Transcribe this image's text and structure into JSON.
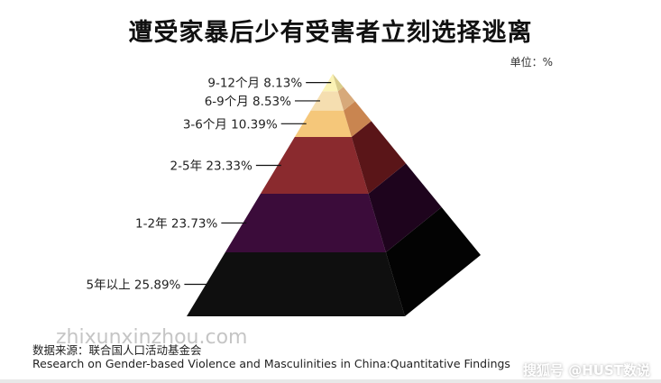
{
  "header": {
    "title": "遭受家暴后少有受害者立刻选择逃离",
    "unit": "单位：%"
  },
  "source": {
    "line1": "数据来源：联合国人口活动基金会",
    "line2": "Research on Gender-based Violence and Masculinities in China:Quantitative Findings"
  },
  "watermark": "zhixunxinzhou.com",
  "brand": "搜狐号 @HUST数说",
  "chart_data": {
    "type": "pyramid",
    "unit": "%",
    "categories": [
      "5年以上",
      "1-2年",
      "2-5年",
      "3-6个月",
      "6-9个月",
      "9-12个月"
    ],
    "values": [
      25.89,
      23.73,
      23.33,
      10.39,
      8.53,
      8.13
    ],
    "labels": [
      "5年以上  25.89%",
      "1-2年  23.73%",
      "2-5年  23.33%",
      "3-6个月  10.39%",
      "6-9个月  8.53%",
      "9-12个月  8.13%"
    ],
    "colors": [
      "#0f0f0f",
      "#3b0c3a",
      "#8a2a2e",
      "#f5c77a",
      "#f5deb0",
      "#fbf3b5"
    ],
    "side_colors": [
      "#030303",
      "#1e041d",
      "#5a1518",
      "#c98550",
      "#d7a97a",
      "#d9cd8c"
    ]
  }
}
